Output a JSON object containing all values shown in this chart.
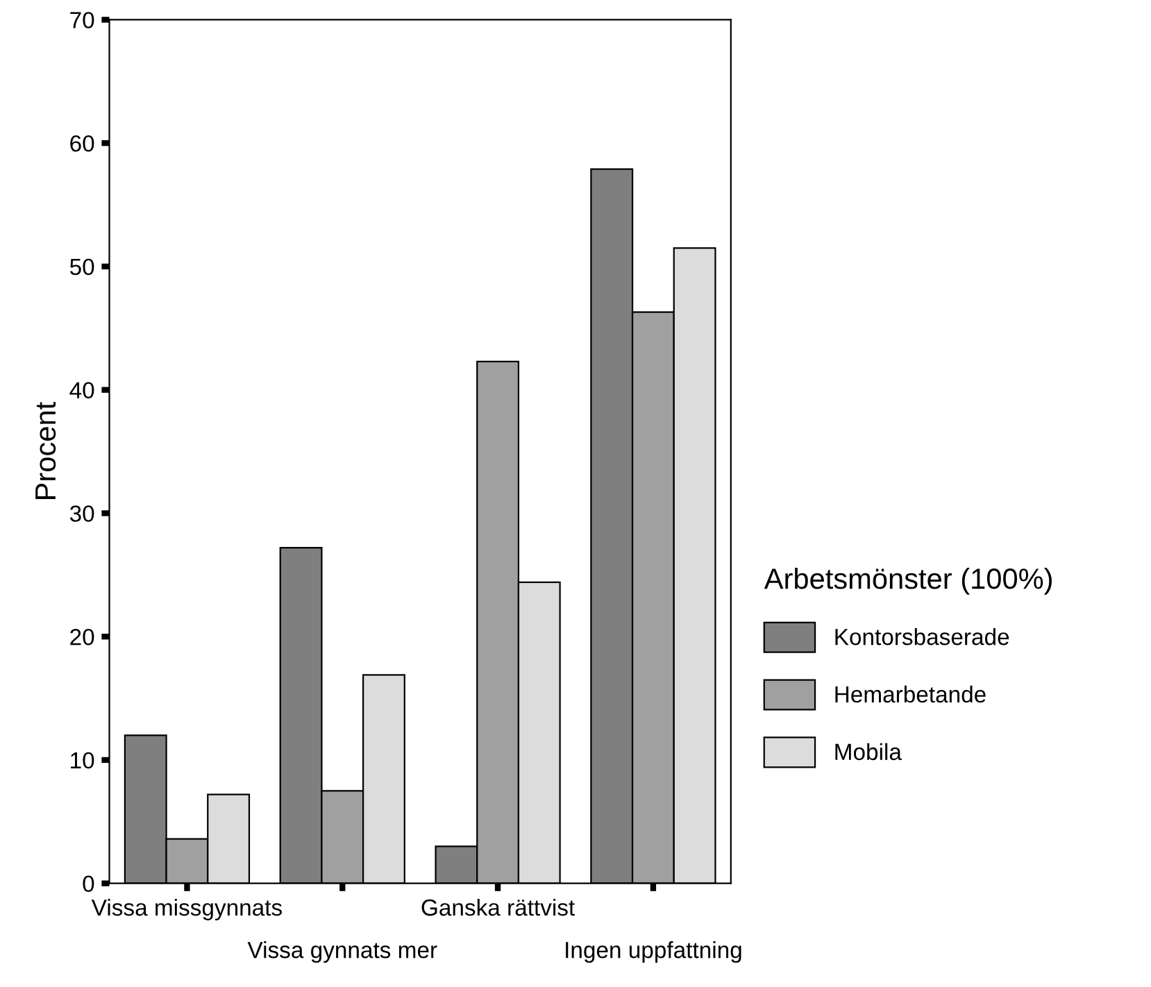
{
  "chart_data": {
    "type": "bar",
    "ylabel": "Procent",
    "legend_title": "Arbetsmönster (100%)",
    "categories": [
      "Vissa missgynnats",
      "Vissa gynnats mer",
      "Ganska rättvist",
      "Ingen uppfattning"
    ],
    "series": [
      {
        "name": "Kontorsbaserade",
        "color": "#7f7f7f",
        "values": [
          12.0,
          27.2,
          3.0,
          57.9
        ]
      },
      {
        "name": "Hemarbetande",
        "color": "#a0a0a0",
        "values": [
          3.6,
          7.5,
          42.3,
          46.3
        ]
      },
      {
        "name": "Mobila",
        "color": "#dcdcdc",
        "values": [
          7.2,
          16.9,
          24.4,
          51.5
        ]
      }
    ],
    "ylim": [
      0,
      70
    ],
    "yticks": [
      0,
      10,
      20,
      30,
      40,
      50,
      60,
      70
    ],
    "grid": false,
    "legend": "right"
  }
}
